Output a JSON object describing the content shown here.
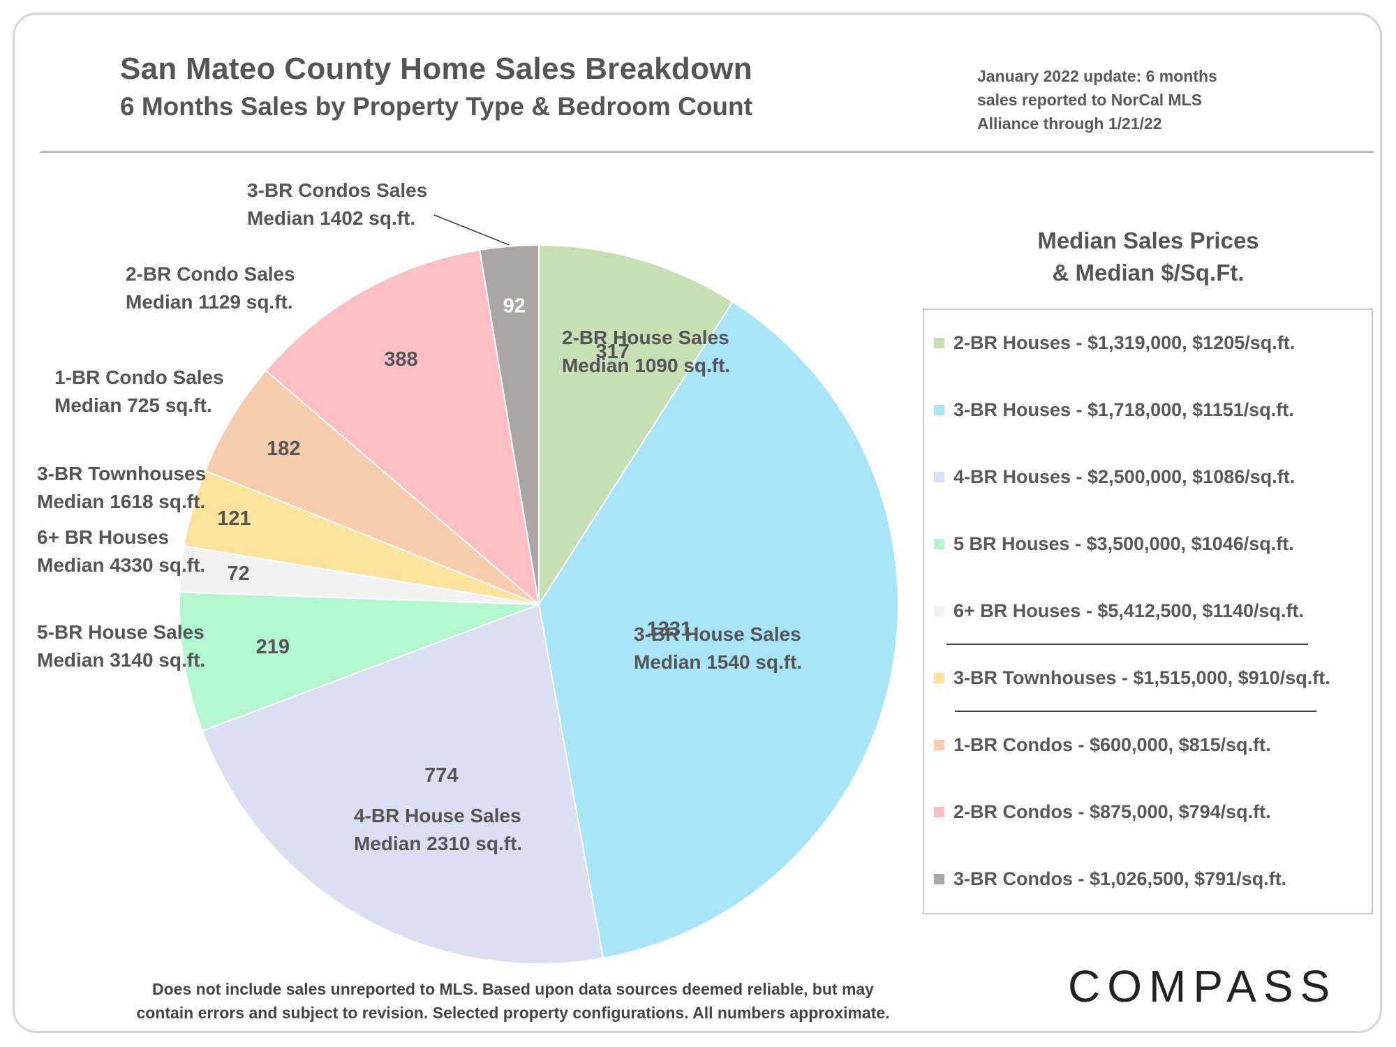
{
  "header": {
    "title": "San Mateo County Home Sales Breakdown",
    "subtitle": "6 Months Sales by Property Type & Bedroom Count",
    "update_note": "January 2022 update: 6 months sales reported to NorCal MLS Alliance through 1/21/22"
  },
  "chart_data": {
    "type": "pie",
    "title": "San Mateo County Home Sales Breakdown",
    "subtitle": "6 Months Sales by Property Type & Bedroom Count",
    "start": "12 o'clock",
    "direction": "clockwise",
    "slices": [
      {
        "name": "2-BR House Sales",
        "detail": "Median 1090 sq.ft.",
        "value": 317,
        "color": "#c6e0b4"
      },
      {
        "name": "3-BR House Sales",
        "detail": "Median 1540 sq.ft.",
        "value": 1331,
        "color": "#a9e5f9"
      },
      {
        "name": "4-BR House Sales",
        "detail": "Median 2310 sq.ft.",
        "value": 774,
        "color": "#dae0f2"
      },
      {
        "name": "5-BR House Sales",
        "detail": "Median 3140 sq.ft.",
        "value": 219,
        "color": "#b3f7d1"
      },
      {
        "name": "6+ BR Houses",
        "detail": "Median 4330 sq.ft.",
        "value": 72,
        "color": "#f2f2f2"
      },
      {
        "name": "3-BR Townhouses",
        "detail": "Median 1618 sq.ft.",
        "value": 121,
        "color": "#fde49c"
      },
      {
        "name": "1-BR Condo Sales",
        "detail": "Median 725 sq.ft.",
        "value": 182,
        "color": "#f8cbad"
      },
      {
        "name": "2-BR Condo Sales",
        "detail": "Median 1129 sq.ft.",
        "value": 388,
        "color": "#fbbfc4"
      },
      {
        "name": "3-BR Condos Sales",
        "detail": "Median 1402 sq.ft.",
        "value": 92,
        "color": "#aba6a6"
      }
    ]
  },
  "legend": {
    "heading_line1": "Median Sales Prices",
    "heading_line2": "& Median $/Sq.Ft.",
    "items": [
      {
        "text": "2-BR Houses - $1,319,000, $1205/sq.ft.",
        "color": "#c6e0b4"
      },
      {
        "text": "3-BR Houses - $1,718,000, $1151/sq.ft.",
        "color": "#a9e5f9"
      },
      {
        "text": "4-BR Houses - $2,500,000, $1086/sq.ft.",
        "color": "#dae0f2"
      },
      {
        "text": "5 BR Houses - $3,500,000, $1046/sq.ft.",
        "color": "#b3f7d1"
      },
      {
        "text": "6+ BR Houses - $5,412,500, $1140/sq.ft.",
        "color": "#f2f2f2"
      },
      {
        "text": "3-BR Townhouses - $1,515,000, $910/sq.ft.",
        "color": "#fde49c"
      },
      {
        "text": "1-BR Condos - $600,000, $815/sq.ft.",
        "color": "#f8cbad"
      },
      {
        "text": "2-BR Condos - $875,000, $794/sq.ft.",
        "color": "#fbbfc4"
      },
      {
        "text": "3-BR Condos - $1,026,500, $791/sq.ft.",
        "color": "#aba6a6"
      }
    ]
  },
  "footnote": {
    "line1": "Does not include sales unreported to MLS.  Based upon data sources deemed reliable, but may",
    "line2": "contain errors and subject to revision. Selected property configurations. All numbers approximate."
  },
  "branding": {
    "logo": "COMPASS"
  }
}
